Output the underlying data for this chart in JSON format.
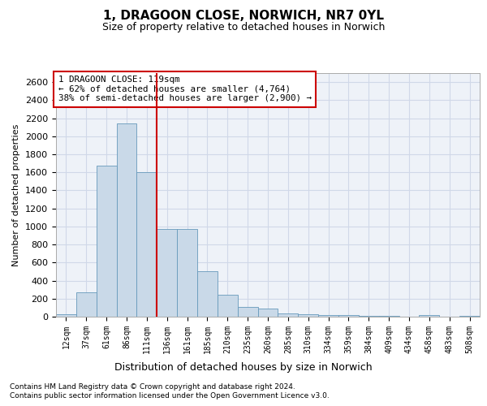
{
  "title": "1, DRAGOON CLOSE, NORWICH, NR7 0YL",
  "subtitle": "Size of property relative to detached houses in Norwich",
  "xlabel": "Distribution of detached houses by size in Norwich",
  "ylabel": "Number of detached properties",
  "footnote1": "Contains HM Land Registry data © Crown copyright and database right 2024.",
  "footnote2": "Contains public sector information licensed under the Open Government Licence v3.0.",
  "annotation_line1": "1 DRAGOON CLOSE: 119sqm",
  "annotation_line2": "← 62% of detached houses are smaller (4,764)",
  "annotation_line3": "38% of semi-detached houses are larger (2,900) →",
  "bar_color": "#c9d9e8",
  "bar_edge_color": "#6699bb",
  "vline_color": "#cc0000",
  "bin_labels": [
    "12sqm",
    "37sqm",
    "61sqm",
    "86sqm",
    "111sqm",
    "136sqm",
    "161sqm",
    "185sqm",
    "210sqm",
    "235sqm",
    "260sqm",
    "285sqm",
    "310sqm",
    "334sqm",
    "359sqm",
    "384sqm",
    "409sqm",
    "434sqm",
    "458sqm",
    "483sqm",
    "508sqm"
  ],
  "bar_values": [
    25,
    270,
    1670,
    2140,
    1600,
    970,
    970,
    500,
    245,
    110,
    90,
    35,
    30,
    20,
    15,
    5,
    5,
    2,
    15,
    2,
    5
  ],
  "ylim": [
    0,
    2700
  ],
  "yticks": [
    0,
    200,
    400,
    600,
    800,
    1000,
    1200,
    1400,
    1600,
    1800,
    2000,
    2200,
    2400,
    2600
  ],
  "grid_color": "#d0d8e8",
  "background_color": "#eef2f8",
  "title_fontsize": 11,
  "subtitle_fontsize": 9
}
